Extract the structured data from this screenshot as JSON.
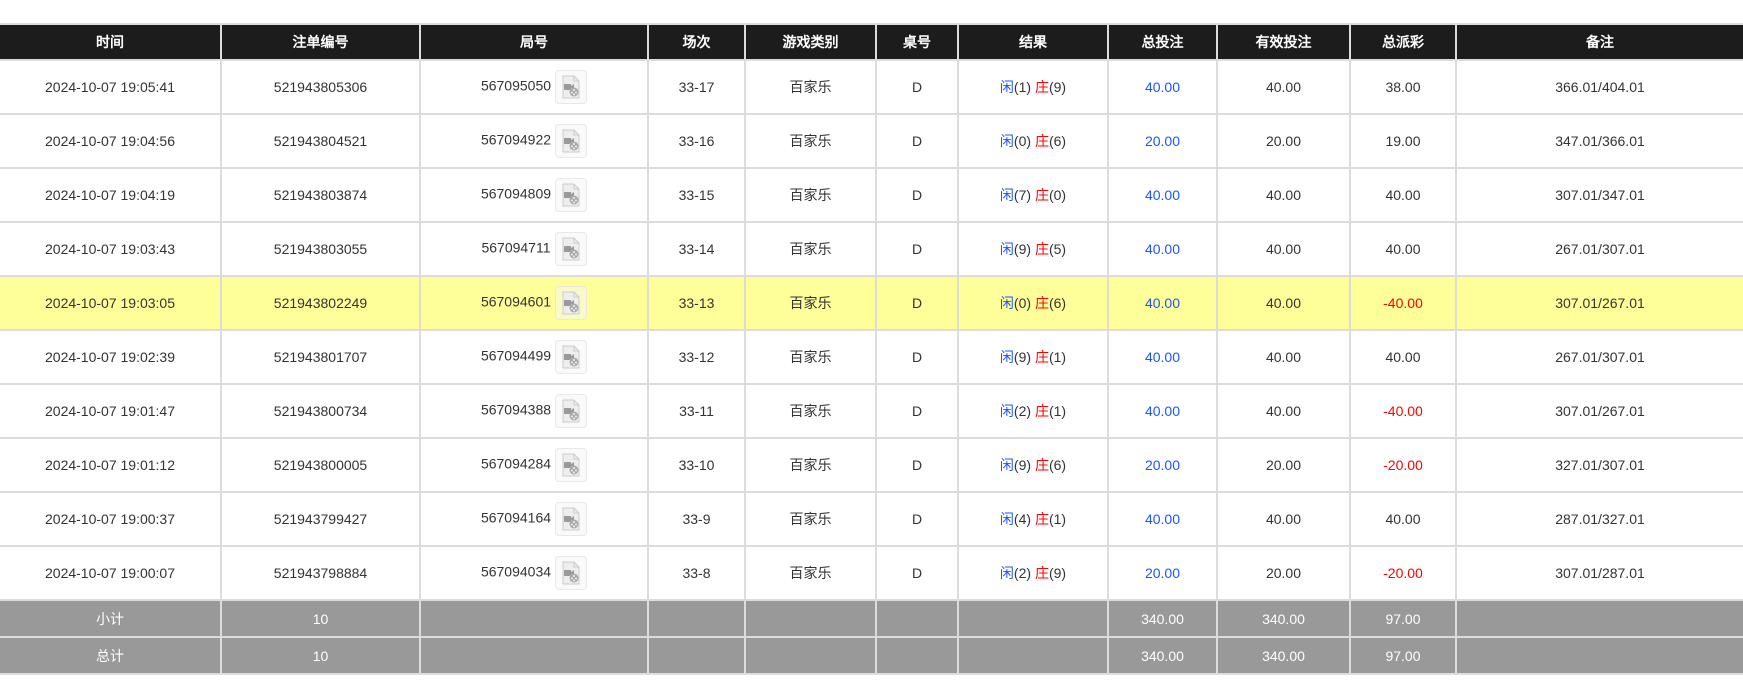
{
  "headers": [
    "时间",
    "注单编号",
    "局号",
    "场次",
    "游戏类别",
    "桌号",
    "结果",
    "总投注",
    "有效投注",
    "总派彩",
    "备注"
  ],
  "colors": {
    "header_bg": "#1c1c1c",
    "highlight": "#ffff99",
    "summary_bg": "#999999",
    "blue": "#1a56ff",
    "red": "#ff0000"
  },
  "rows": [
    {
      "time": "2024-10-07 19:05:41",
      "bet_id": "521943805306",
      "round": "567095050",
      "shoe": "33-17",
      "game": "百家乐",
      "table": "D",
      "player_label": "闲",
      "player": "(1)",
      "banker_label": "庄",
      "banker": "(9)",
      "total_bet": "40.00",
      "valid_bet": "40.00",
      "payout": "38.00",
      "payout_negative": false,
      "note": "366.01/404.01",
      "highlight": false
    },
    {
      "time": "2024-10-07 19:04:56",
      "bet_id": "521943804521",
      "round": "567094922",
      "shoe": "33-16",
      "game": "百家乐",
      "table": "D",
      "player_label": "闲",
      "player": "(0)",
      "banker_label": "庄",
      "banker": "(6)",
      "total_bet": "20.00",
      "valid_bet": "20.00",
      "payout": "19.00",
      "payout_negative": false,
      "note": "347.01/366.01",
      "highlight": false
    },
    {
      "time": "2024-10-07 19:04:19",
      "bet_id": "521943803874",
      "round": "567094809",
      "shoe": "33-15",
      "game": "百家乐",
      "table": "D",
      "player_label": "闲",
      "player": "(7)",
      "banker_label": "庄",
      "banker": "(0)",
      "total_bet": "40.00",
      "valid_bet": "40.00",
      "payout": "40.00",
      "payout_negative": false,
      "note": "307.01/347.01",
      "highlight": false
    },
    {
      "time": "2024-10-07 19:03:43",
      "bet_id": "521943803055",
      "round": "567094711",
      "shoe": "33-14",
      "game": "百家乐",
      "table": "D",
      "player_label": "闲",
      "player": "(9)",
      "banker_label": "庄",
      "banker": "(5)",
      "total_bet": "40.00",
      "valid_bet": "40.00",
      "payout": "40.00",
      "payout_negative": false,
      "note": "267.01/307.01",
      "highlight": false
    },
    {
      "time": "2024-10-07 19:03:05",
      "bet_id": "521943802249",
      "round": "567094601",
      "shoe": "33-13",
      "game": "百家乐",
      "table": "D",
      "player_label": "闲",
      "player": "(0)",
      "banker_label": "庄",
      "banker": "(6)",
      "total_bet": "40.00",
      "valid_bet": "40.00",
      "payout": "-40.00",
      "payout_negative": true,
      "note": "307.01/267.01",
      "highlight": true
    },
    {
      "time": "2024-10-07 19:02:39",
      "bet_id": "521943801707",
      "round": "567094499",
      "shoe": "33-12",
      "game": "百家乐",
      "table": "D",
      "player_label": "闲",
      "player": "(9)",
      "banker_label": "庄",
      "banker": "(1)",
      "total_bet": "40.00",
      "valid_bet": "40.00",
      "payout": "40.00",
      "payout_negative": false,
      "note": "267.01/307.01",
      "highlight": false
    },
    {
      "time": "2024-10-07 19:01:47",
      "bet_id": "521943800734",
      "round": "567094388",
      "shoe": "33-11",
      "game": "百家乐",
      "table": "D",
      "player_label": "闲",
      "player": "(2)",
      "banker_label": "庄",
      "banker": "(1)",
      "total_bet": "40.00",
      "valid_bet": "40.00",
      "payout": "-40.00",
      "payout_negative": true,
      "note": "307.01/267.01",
      "highlight": false
    },
    {
      "time": "2024-10-07 19:01:12",
      "bet_id": "521943800005",
      "round": "567094284",
      "shoe": "33-10",
      "game": "百家乐",
      "table": "D",
      "player_label": "闲",
      "player": "(9)",
      "banker_label": "庄",
      "banker": "(6)",
      "total_bet": "20.00",
      "valid_bet": "20.00",
      "payout": "-20.00",
      "payout_negative": true,
      "note": "327.01/307.01",
      "highlight": false
    },
    {
      "time": "2024-10-07 19:00:37",
      "bet_id": "521943799427",
      "round": "567094164",
      "shoe": "33-9",
      "game": "百家乐",
      "table": "D",
      "player_label": "闲",
      "player": "(4)",
      "banker_label": "庄",
      "banker": "(1)",
      "total_bet": "40.00",
      "valid_bet": "40.00",
      "payout": "40.00",
      "payout_negative": false,
      "note": "287.01/327.01",
      "highlight": false
    },
    {
      "time": "2024-10-07 19:00:07",
      "bet_id": "521943798884",
      "round": "567094034",
      "shoe": "33-8",
      "game": "百家乐",
      "table": "D",
      "player_label": "闲",
      "player": "(2)",
      "banker_label": "庄",
      "banker": "(9)",
      "total_bet": "20.00",
      "valid_bet": "20.00",
      "payout": "-20.00",
      "payout_negative": true,
      "note": "307.01/287.01",
      "highlight": false
    }
  ],
  "subtotal": {
    "label": "小计",
    "count": "10",
    "total_bet": "340.00",
    "valid_bet": "340.00",
    "payout": "97.00"
  },
  "total": {
    "label": "总计",
    "count": "10",
    "total_bet": "340.00",
    "valid_bet": "340.00",
    "payout": "97.00"
  },
  "icon": "video-file-icon"
}
